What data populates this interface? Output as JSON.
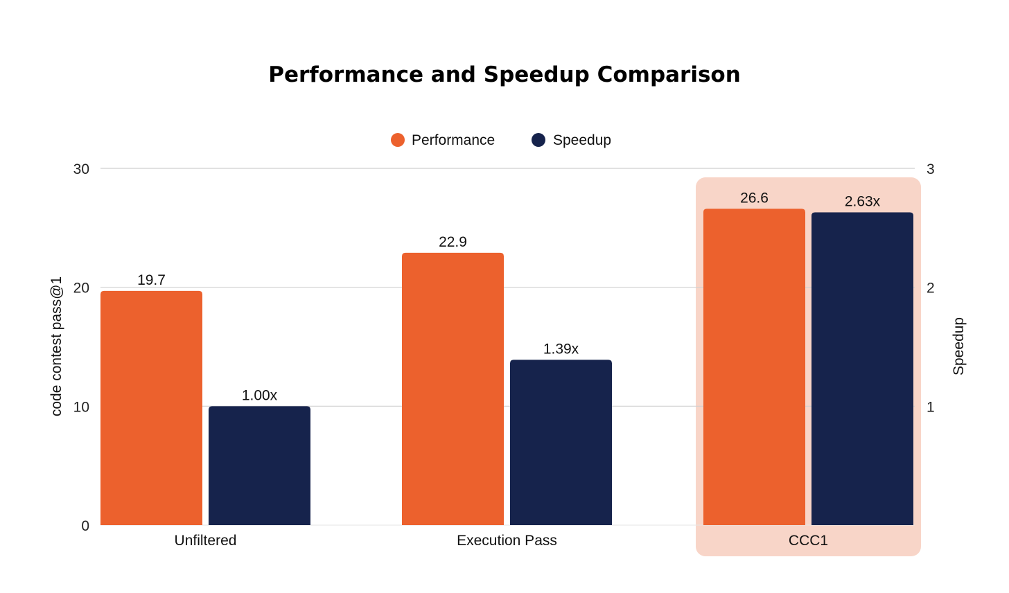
{
  "chart_data": {
    "type": "bar",
    "title": "Performance and Speedup Comparison",
    "categories": [
      "Unfiltered",
      "Execution Pass",
      "CCC1"
    ],
    "highlighted_category": "CCC1",
    "series": [
      {
        "name": "Performance",
        "axis": "left",
        "color": "#EC612D",
        "values": [
          19.7,
          22.9,
          26.6
        ],
        "labels": [
          "19.7",
          "22.9",
          "26.6"
        ]
      },
      {
        "name": "Speedup",
        "axis": "right",
        "color": "#16234C",
        "values": [
          1.0,
          1.39,
          2.63
        ],
        "labels": [
          "1.00x",
          "1.39x",
          "2.63x"
        ]
      }
    ],
    "ylabel": "code contest pass@1",
    "ylim": [
      0,
      30
    ],
    "yticks": [
      "0",
      "10",
      "20",
      "30"
    ],
    "y2label": "Speedup",
    "y2lim": [
      0,
      3
    ],
    "y2ticks": [
      "1",
      "2",
      "3"
    ],
    "legend_position": "top-center",
    "highlight_color": "#F8D5C8",
    "grid": true
  }
}
